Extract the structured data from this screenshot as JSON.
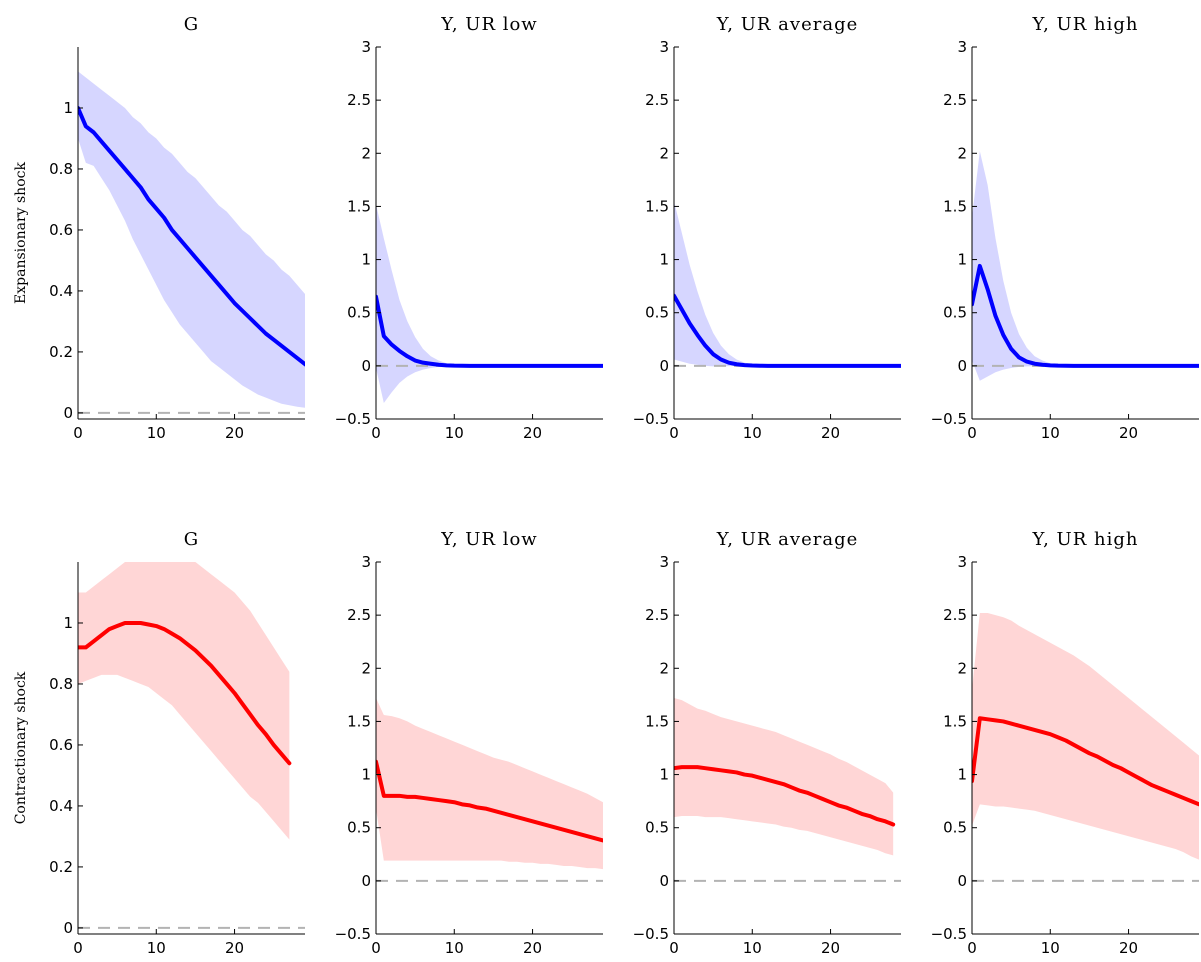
{
  "chart_data": [
    {
      "type": "area",
      "row_label": "Expansionary shock",
      "title": "G",
      "xlim": [
        0,
        29
      ],
      "ylim": [
        -0.02,
        1.2
      ],
      "xticks": [
        0,
        10,
        20
      ],
      "yticks": [
        0,
        0.2,
        0.4,
        0.6,
        0.8,
        1
      ],
      "line_color": "#0000ff",
      "band_color": "#d6d6ff",
      "x_start": 0,
      "values": [
        1.0,
        0.94,
        0.92,
        0.89,
        0.86,
        0.83,
        0.8,
        0.77,
        0.74,
        0.7,
        0.67,
        0.64,
        0.6,
        0.57,
        0.54,
        0.51,
        0.48,
        0.45,
        0.42,
        0.39,
        0.36,
        0.335,
        0.31,
        0.285,
        0.26,
        0.24,
        0.22,
        0.2,
        0.18,
        0.16,
        0.14
      ],
      "upper": [
        1.12,
        1.1,
        1.08,
        1.06,
        1.04,
        1.02,
        1.0,
        0.97,
        0.95,
        0.92,
        0.9,
        0.87,
        0.85,
        0.82,
        0.79,
        0.77,
        0.74,
        0.71,
        0.68,
        0.66,
        0.63,
        0.6,
        0.58,
        0.55,
        0.52,
        0.5,
        0.47,
        0.45,
        0.42,
        0.39,
        0.36
      ],
      "lower": [
        0.9,
        0.82,
        0.81,
        0.77,
        0.73,
        0.68,
        0.63,
        0.57,
        0.52,
        0.47,
        0.42,
        0.37,
        0.33,
        0.29,
        0.26,
        0.23,
        0.2,
        0.17,
        0.15,
        0.13,
        0.11,
        0.09,
        0.075,
        0.06,
        0.05,
        0.04,
        0.03,
        0.025,
        0.02,
        0.017,
        0.015
      ]
    },
    {
      "type": "area",
      "title": "Y, UR low",
      "xlim": [
        0,
        29
      ],
      "ylim": [
        -0.5,
        3
      ],
      "xticks": [
        0,
        10,
        20
      ],
      "yticks": [
        -0.5,
        0,
        0.5,
        1,
        1.5,
        2,
        2.5,
        3
      ],
      "line_color": "#0000ff",
      "band_color": "#d6d6ff",
      "x_start": 0,
      "values": [
        0.65,
        0.28,
        0.2,
        0.14,
        0.09,
        0.05,
        0.03,
        0.02,
        0.01,
        0.005,
        0.002,
        0.001,
        0,
        0,
        0,
        0,
        0,
        0,
        0,
        0,
        0,
        0,
        0,
        0,
        0,
        0,
        0,
        0,
        0,
        0,
        0
      ],
      "upper": [
        1.52,
        1.2,
        0.9,
        0.62,
        0.42,
        0.27,
        0.16,
        0.09,
        0.05,
        0.025,
        0.012,
        0.006,
        0.003,
        0.001,
        0,
        0,
        0,
        0,
        0,
        0,
        0,
        0,
        0,
        0,
        0,
        0,
        0,
        0,
        0,
        0,
        0
      ],
      "lower": [
        -0.02,
        -0.35,
        -0.25,
        -0.16,
        -0.1,
        -0.06,
        -0.035,
        -0.02,
        -0.01,
        -0.005,
        -0.002,
        -0.001,
        0,
        0,
        0,
        0,
        0,
        0,
        0,
        0,
        0,
        0,
        0,
        0,
        0,
        0,
        0,
        0,
        0,
        0,
        0
      ]
    },
    {
      "type": "area",
      "title": "Y, UR average",
      "xlim": [
        0,
        29
      ],
      "ylim": [
        -0.5,
        3
      ],
      "xticks": [
        0,
        10,
        20
      ],
      "yticks": [
        -0.5,
        0,
        0.5,
        1,
        1.5,
        2,
        2.5,
        3
      ],
      "line_color": "#0000ff",
      "band_color": "#d6d6ff",
      "x_start": 0,
      "values": [
        0.66,
        0.53,
        0.4,
        0.29,
        0.19,
        0.11,
        0.06,
        0.03,
        0.015,
        0.007,
        0.003,
        0.001,
        0,
        0,
        0,
        0,
        0,
        0,
        0,
        0,
        0,
        0,
        0,
        0,
        0,
        0,
        0,
        0,
        0,
        0,
        0
      ],
      "upper": [
        1.55,
        1.25,
        0.95,
        0.7,
        0.48,
        0.31,
        0.19,
        0.11,
        0.06,
        0.03,
        0.015,
        0.007,
        0.003,
        0.001,
        0,
        0,
        0,
        0,
        0,
        0,
        0,
        0,
        0,
        0,
        0,
        0,
        0,
        0,
        0,
        0,
        0
      ],
      "lower": [
        0.06,
        0.04,
        0.02,
        0.01,
        0.0,
        -0.005,
        -0.005,
        -0.003,
        -0.001,
        0,
        0,
        0,
        0,
        0,
        0,
        0,
        0,
        0,
        0,
        0,
        0,
        0,
        0,
        0,
        0,
        0,
        0,
        0,
        0,
        0,
        0
      ]
    },
    {
      "type": "area",
      "title": "Y, UR high",
      "xlim": [
        0,
        29
      ],
      "ylim": [
        -0.5,
        3
      ],
      "xticks": [
        0,
        10,
        20
      ],
      "yticks": [
        -0.5,
        0,
        0.5,
        1,
        1.5,
        2,
        2.5,
        3
      ],
      "line_color": "#0000ff",
      "band_color": "#d6d6ff",
      "x_start": 0,
      "values": [
        0.58,
        0.94,
        0.72,
        0.47,
        0.29,
        0.16,
        0.08,
        0.04,
        0.02,
        0.01,
        0.005,
        0.002,
        0.001,
        0,
        0,
        0,
        0,
        0,
        0,
        0,
        0,
        0,
        0,
        0,
        0,
        0,
        0,
        0,
        0,
        0,
        0
      ],
      "upper": [
        1.4,
        2.02,
        1.7,
        1.2,
        0.8,
        0.5,
        0.3,
        0.17,
        0.09,
        0.05,
        0.025,
        0.012,
        0.006,
        0.003,
        0.001,
        0,
        0,
        0,
        0,
        0,
        0,
        0,
        0,
        0,
        0,
        0,
        0,
        0,
        0,
        0,
        0
      ],
      "lower": [
        0.05,
        -0.14,
        -0.1,
        -0.06,
        -0.035,
        -0.02,
        -0.01,
        -0.005,
        -0.002,
        -0.001,
        0,
        0,
        0,
        0,
        0,
        0,
        0,
        0,
        0,
        0,
        0,
        0,
        0,
        0,
        0,
        0,
        0,
        0,
        0,
        0,
        0
      ]
    },
    {
      "type": "area",
      "row_label": "Contractionary shock",
      "title": "G",
      "xlim": [
        0,
        29
      ],
      "ylim": [
        -0.02,
        1.2
      ],
      "xticks": [
        0,
        10,
        20
      ],
      "yticks": [
        0,
        0.2,
        0.4,
        0.6,
        0.8,
        1
      ],
      "line_color": "#ff0000",
      "band_color": "#ffd6d6",
      "x_start": 0,
      "values": [
        0.92,
        0.92,
        0.94,
        0.96,
        0.98,
        0.99,
        1.0,
        1.0,
        1.0,
        0.995,
        0.99,
        0.98,
        0.965,
        0.95,
        0.93,
        0.91,
        0.885,
        0.86,
        0.83,
        0.8,
        0.77,
        0.735,
        0.7,
        0.665,
        0.635,
        0.6,
        0.57,
        0.54
      ],
      "upper": [
        1.1,
        1.1,
        1.12,
        1.14,
        1.16,
        1.18,
        1.2,
        1.22,
        1.23,
        1.24,
        1.25,
        1.25,
        1.24,
        1.23,
        1.22,
        1.2,
        1.18,
        1.16,
        1.14,
        1.12,
        1.1,
        1.07,
        1.04,
        1.0,
        0.96,
        0.92,
        0.88,
        0.84
      ],
      "lower": [
        0.8,
        0.81,
        0.82,
        0.83,
        0.83,
        0.83,
        0.82,
        0.81,
        0.8,
        0.79,
        0.77,
        0.75,
        0.73,
        0.7,
        0.67,
        0.64,
        0.61,
        0.58,
        0.55,
        0.52,
        0.49,
        0.46,
        0.43,
        0.41,
        0.38,
        0.35,
        0.32,
        0.29
      ]
    },
    {
      "type": "area",
      "title": "Y, UR low",
      "xlim": [
        0,
        29
      ],
      "ylim": [
        -0.5,
        3
      ],
      "xticks": [
        0,
        10,
        20
      ],
      "yticks": [
        -0.5,
        0,
        0.5,
        1,
        1.5,
        2,
        2.5,
        3
      ],
      "line_color": "#ff0000",
      "band_color": "#ffd6d6",
      "x_start": 0,
      "values": [
        1.12,
        0.8,
        0.8,
        0.8,
        0.79,
        0.79,
        0.78,
        0.77,
        0.76,
        0.75,
        0.74,
        0.72,
        0.71,
        0.69,
        0.68,
        0.66,
        0.64,
        0.62,
        0.6,
        0.58,
        0.56,
        0.54,
        0.52,
        0.5,
        0.48,
        0.46,
        0.44,
        0.42,
        0.4,
        0.38,
        0.36
      ],
      "upper": [
        1.72,
        1.56,
        1.55,
        1.53,
        1.5,
        1.46,
        1.43,
        1.4,
        1.37,
        1.34,
        1.31,
        1.28,
        1.25,
        1.22,
        1.19,
        1.16,
        1.14,
        1.12,
        1.09,
        1.06,
        1.03,
        1.0,
        0.97,
        0.94,
        0.91,
        0.88,
        0.85,
        0.82,
        0.78,
        0.74,
        0.7
      ],
      "lower": [
        0.68,
        0.19,
        0.19,
        0.19,
        0.19,
        0.19,
        0.19,
        0.19,
        0.19,
        0.19,
        0.19,
        0.19,
        0.19,
        0.19,
        0.19,
        0.19,
        0.19,
        0.18,
        0.18,
        0.17,
        0.17,
        0.16,
        0.16,
        0.15,
        0.14,
        0.14,
        0.13,
        0.12,
        0.12,
        0.11,
        0.1
      ]
    },
    {
      "type": "area",
      "title": "Y, UR average",
      "xlim": [
        0,
        29
      ],
      "ylim": [
        -0.5,
        3
      ],
      "xticks": [
        0,
        10,
        20
      ],
      "yticks": [
        -0.5,
        0,
        0.5,
        1,
        1.5,
        2,
        2.5,
        3
      ],
      "line_color": "#ff0000",
      "band_color": "#ffd6d6",
      "x_start": 0,
      "values": [
        1.06,
        1.07,
        1.07,
        1.07,
        1.06,
        1.05,
        1.04,
        1.03,
        1.02,
        1.0,
        0.99,
        0.97,
        0.95,
        0.93,
        0.91,
        0.88,
        0.85,
        0.83,
        0.8,
        0.77,
        0.74,
        0.71,
        0.69,
        0.66,
        0.63,
        0.61,
        0.58,
        0.56,
        0.53
      ],
      "upper": [
        1.72,
        1.7,
        1.66,
        1.62,
        1.6,
        1.57,
        1.54,
        1.52,
        1.5,
        1.48,
        1.46,
        1.44,
        1.42,
        1.4,
        1.37,
        1.34,
        1.31,
        1.28,
        1.25,
        1.22,
        1.19,
        1.15,
        1.12,
        1.08,
        1.04,
        1.0,
        0.96,
        0.92,
        0.83
      ],
      "lower": [
        0.6,
        0.61,
        0.61,
        0.61,
        0.6,
        0.6,
        0.6,
        0.59,
        0.58,
        0.57,
        0.56,
        0.55,
        0.54,
        0.53,
        0.51,
        0.5,
        0.48,
        0.47,
        0.45,
        0.43,
        0.41,
        0.39,
        0.37,
        0.35,
        0.33,
        0.31,
        0.29,
        0.26,
        0.24
      ]
    },
    {
      "type": "area",
      "title": "Y, UR high",
      "xlim": [
        0,
        29
      ],
      "ylim": [
        -0.5,
        3
      ],
      "xticks": [
        0,
        10,
        20
      ],
      "yticks": [
        -0.5,
        0,
        0.5,
        1,
        1.5,
        2,
        2.5,
        3
      ],
      "line_color": "#ff0000",
      "band_color": "#ffd6d6",
      "x_start": 0,
      "values": [
        0.94,
        1.53,
        1.52,
        1.51,
        1.5,
        1.48,
        1.46,
        1.44,
        1.42,
        1.4,
        1.38,
        1.35,
        1.32,
        1.28,
        1.24,
        1.2,
        1.17,
        1.13,
        1.09,
        1.06,
        1.02,
        0.98,
        0.94,
        0.9,
        0.87,
        0.84,
        0.81,
        0.78,
        0.75,
        0.72
      ],
      "upper": [
        1.8,
        2.52,
        2.52,
        2.5,
        2.48,
        2.45,
        2.4,
        2.36,
        2.32,
        2.28,
        2.24,
        2.2,
        2.16,
        2.12,
        2.07,
        2.02,
        1.96,
        1.9,
        1.84,
        1.78,
        1.72,
        1.66,
        1.6,
        1.54,
        1.48,
        1.42,
        1.36,
        1.3,
        1.24,
        1.18
      ],
      "lower": [
        0.52,
        0.72,
        0.71,
        0.7,
        0.7,
        0.69,
        0.68,
        0.67,
        0.66,
        0.64,
        0.62,
        0.6,
        0.58,
        0.56,
        0.54,
        0.52,
        0.5,
        0.48,
        0.46,
        0.44,
        0.42,
        0.4,
        0.38,
        0.36,
        0.34,
        0.32,
        0.3,
        0.27,
        0.23,
        0.2
      ]
    }
  ]
}
